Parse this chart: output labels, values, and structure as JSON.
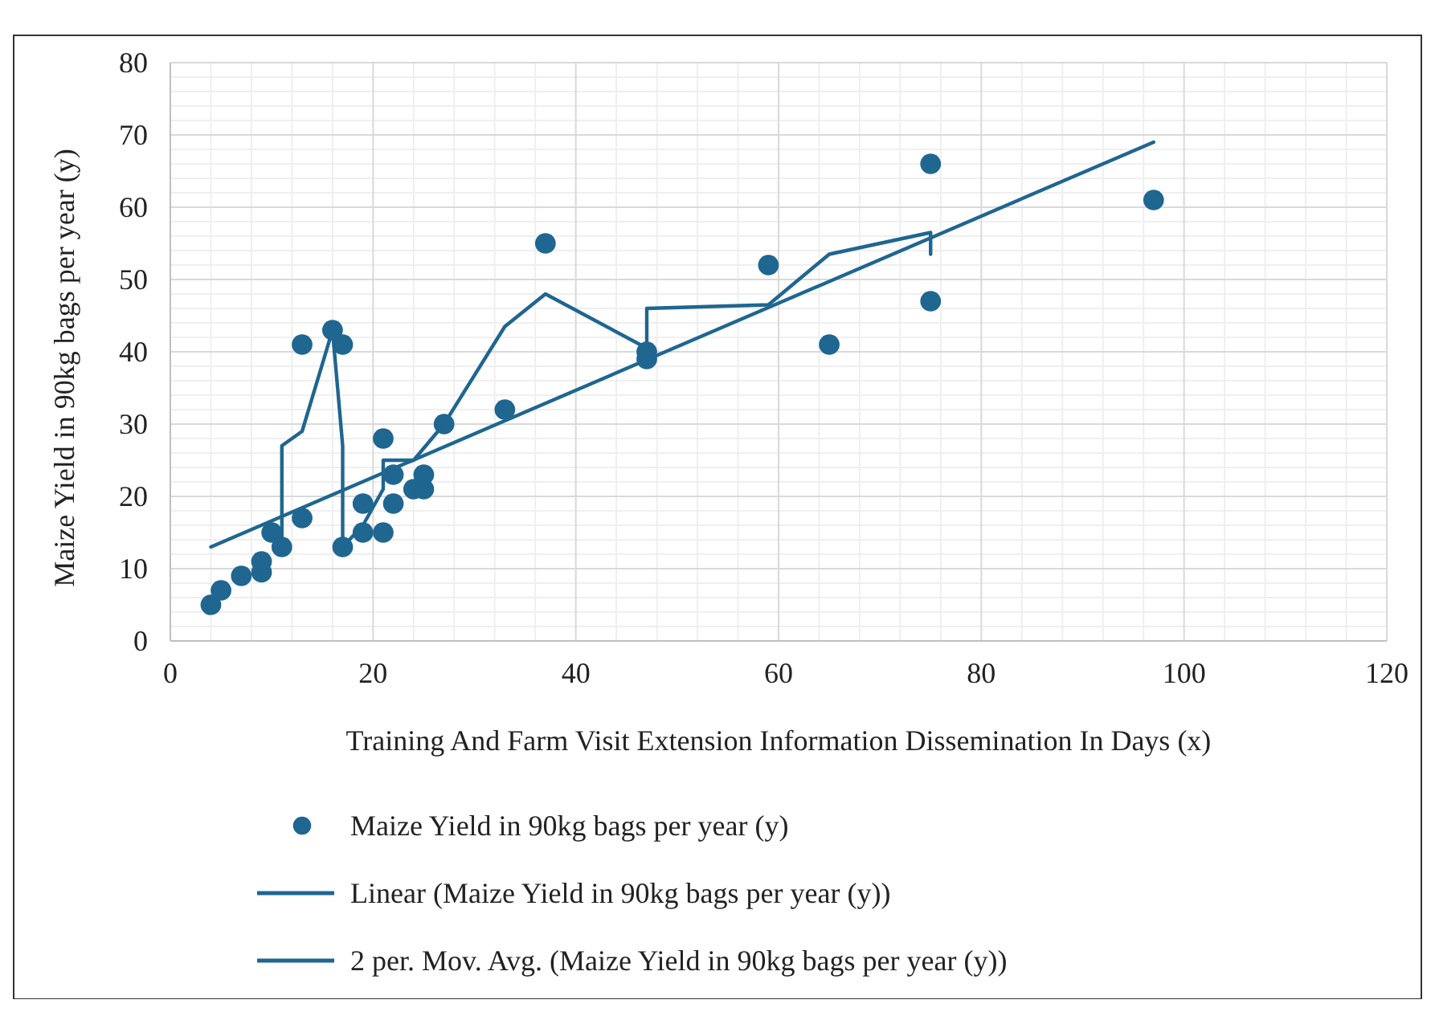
{
  "chart_data": {
    "type": "scatter",
    "xlabel": "Training And Farm Visit Extension Information Dissemination  In Days (x)",
    "ylabel": "Maize Yield in 90kg bags per year (y)",
    "xlim": [
      0,
      120
    ],
    "xticks": [
      0,
      20,
      40,
      60,
      80,
      100,
      120
    ],
    "ylim": [
      0,
      80
    ],
    "yticks": [
      0,
      10,
      20,
      30,
      40,
      50,
      60,
      70,
      80
    ],
    "grid": true,
    "legend": "bottom",
    "marker": "circle",
    "series": [
      {
        "name": "Maize Yield in 90kg bags per year (y)",
        "color": "#1f6690",
        "x": [
          4,
          5,
          7,
          9,
          9,
          10,
          11,
          13,
          13,
          16,
          17,
          17,
          19,
          19,
          21,
          21,
          22,
          22,
          24,
          25,
          25,
          27,
          33,
          37,
          47,
          47,
          59,
          65,
          75,
          75,
          97
        ],
        "values": [
          5,
          7,
          9,
          9.5,
          11,
          15,
          13,
          17,
          41,
          43,
          41,
          13,
          15,
          19,
          15,
          28,
          19,
          23,
          21,
          21,
          23,
          30,
          32,
          55,
          39,
          40,
          52,
          41,
          47,
          66,
          61
        ]
      },
      {
        "name": "Linear (Maize Yield in 90kg bags per year (y))",
        "type": "line",
        "color": "#1f6690",
        "marker": "none",
        "line_style": "solid",
        "x": [
          4,
          97
        ],
        "values": [
          13,
          69
        ]
      },
      {
        "name": "2 per. Mov. Avg. (Maize Yield in 90kg bags per year (y))",
        "type": "line",
        "color": "#1f6690",
        "marker": "none",
        "line_style": "solid",
        "x": [
          11,
          11,
          13,
          16,
          17,
          17,
          19,
          21,
          21,
          24,
          27,
          33,
          37,
          47,
          47,
          59,
          65,
          75,
          75
        ],
        "values": [
          13,
          27,
          29,
          43,
          27,
          13,
          16,
          21,
          25,
          25,
          30,
          43.5,
          48,
          40.5,
          46,
          46.5,
          53.5,
          56.5,
          53.5
        ]
      }
    ]
  }
}
